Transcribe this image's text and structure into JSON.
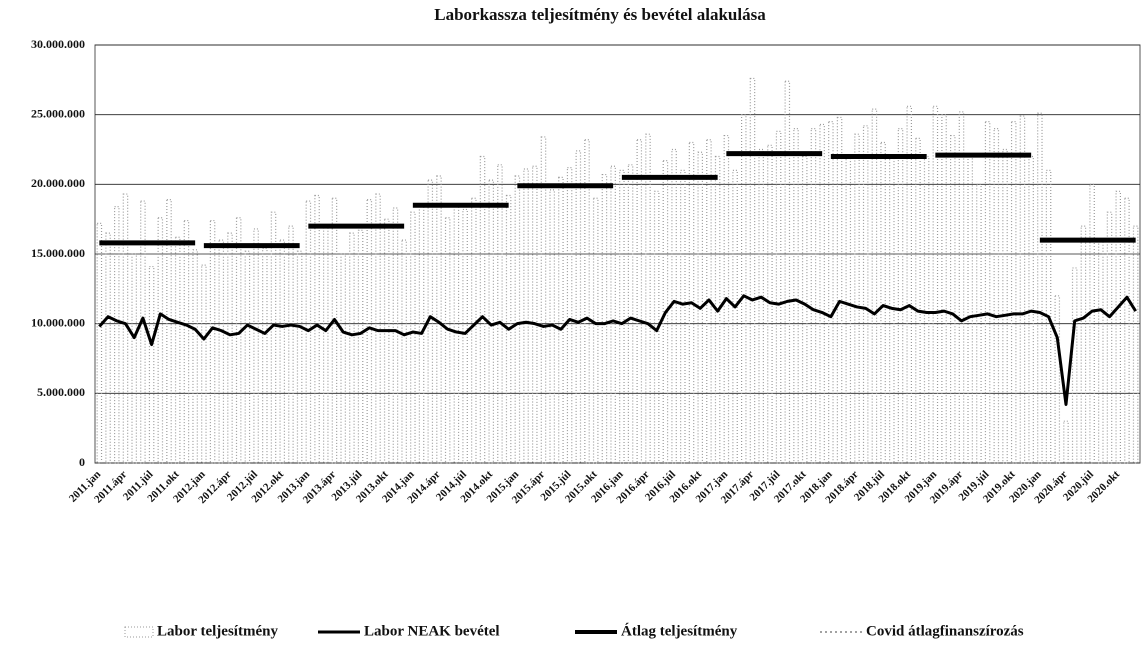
{
  "chart_data": {
    "type": "bar",
    "title": "Laborkassza teljesítmény és bevétel alakulása",
    "categories": [
      "2011.jan",
      null,
      null,
      "2011.ápr",
      null,
      null,
      "2011.júl",
      null,
      null,
      "2011.okt",
      null,
      null,
      "2012.jan",
      null,
      null,
      "2012.ápr",
      null,
      null,
      "2012.júl",
      null,
      null,
      "2012.okt",
      null,
      null,
      "2013.jan",
      null,
      null,
      "2013.ápr",
      null,
      null,
      "2013.júl",
      null,
      null,
      "2013.okt",
      null,
      null,
      "2014.jan",
      null,
      null,
      "2014.ápr",
      null,
      null,
      "2014.júl",
      null,
      null,
      "2014.okt",
      null,
      null,
      "2015.jan",
      null,
      null,
      "2015.ápr",
      null,
      null,
      "2015.júl",
      null,
      null,
      "2015.okt",
      null,
      null,
      "2016.jan",
      null,
      null,
      "2016.ápr",
      null,
      null,
      "2016.júl",
      null,
      null,
      "2016.okt",
      null,
      null,
      "2017.jan",
      null,
      null,
      "2017.ápr",
      null,
      null,
      "2017.júl",
      null,
      null,
      "2017.okt",
      null,
      null,
      "2018.jan",
      null,
      null,
      "2018.ápr",
      null,
      null,
      "2018.júl",
      null,
      null,
      "2018.okt",
      null,
      null,
      "2019.jan",
      null,
      null,
      "2019.ápr",
      null,
      null,
      "2019.júl",
      null,
      null,
      "2019.okt",
      null,
      null,
      "2020.jan",
      null,
      null,
      "2020.ápr",
      null,
      null,
      "2020.júl",
      null,
      null,
      "2020.okt",
      null,
      null
    ],
    "series": [
      {
        "name": "Labor teljesítmény",
        "type": "bar",
        "color": "#9a9a9a",
        "values": [
          17200000,
          16500000,
          18400000,
          19300000,
          15000000,
          18800000,
          14100000,
          17600000,
          18900000,
          16200000,
          17400000,
          15300000,
          14200000,
          17400000,
          16000000,
          16500000,
          17600000,
          15200000,
          16800000,
          15400000,
          18000000,
          16000000,
          17000000,
          15200000,
          18800000,
          19200000,
          17000000,
          19000000,
          15000000,
          16500000,
          16700000,
          18900000,
          19300000,
          17500000,
          18300000,
          16000000,
          18000000,
          18500000,
          20300000,
          20600000,
          17600000,
          18500000,
          18200000,
          19000000,
          22000000,
          20300000,
          21400000,
          19200000,
          20600000,
          21100000,
          21300000,
          23400000,
          19600000,
          20500000,
          21200000,
          22400000,
          23200000,
          19000000,
          20700000,
          21300000,
          21000000,
          21400000,
          23200000,
          23600000,
          19500000,
          21700000,
          22500000,
          21000000,
          23000000,
          22300000,
          23200000,
          22000000,
          23500000,
          21000000,
          25000000,
          27600000,
          22500000,
          22800000,
          23800000,
          27400000,
          24000000,
          22000000,
          24000000,
          24300000,
          24500000,
          24800000,
          22000000,
          23600000,
          24200000,
          25400000,
          23000000,
          22000000,
          24000000,
          25600000,
          23300000,
          22000000,
          25600000,
          25000000,
          23500000,
          25200000,
          22200000,
          20000000,
          24500000,
          24000000,
          22500000,
          24500000,
          24900000,
          22000000,
          25100000,
          21000000,
          12000000,
          3000000,
          14000000,
          17000000,
          20000000,
          16000000,
          18000000,
          19500000,
          19000000,
          17000000
        ]
      },
      {
        "name": "Labor NEAK bevétel",
        "type": "line",
        "color": "#000000",
        "width": 3,
        "values": [
          9800000,
          10500000,
          10200000,
          10000000,
          9000000,
          10400000,
          8500000,
          10700000,
          10300000,
          10100000,
          9900000,
          9600000,
          8900000,
          9700000,
          9500000,
          9200000,
          9300000,
          9900000,
          9600000,
          9300000,
          9900000,
          9800000,
          9900000,
          9800000,
          9500000,
          9900000,
          9500000,
          10300000,
          9400000,
          9200000,
          9300000,
          9700000,
          9500000,
          9500000,
          9500000,
          9200000,
          9400000,
          9300000,
          10500000,
          10100000,
          9600000,
          9400000,
          9300000,
          9900000,
          10500000,
          9900000,
          10100000,
          9600000,
          10000000,
          10100000,
          10000000,
          9800000,
          9900000,
          9600000,
          10300000,
          10100000,
          10400000,
          10000000,
          10000000,
          10200000,
          10000000,
          10400000,
          10200000,
          10000000,
          9500000,
          10800000,
          11600000,
          11400000,
          11500000,
          11100000,
          11700000,
          10900000,
          11800000,
          11200000,
          12000000,
          11700000,
          11900000,
          11500000,
          11400000,
          11600000,
          11700000,
          11400000,
          11000000,
          10800000,
          10500000,
          11600000,
          11400000,
          11200000,
          11100000,
          10700000,
          11300000,
          11100000,
          11000000,
          11300000,
          10900000,
          10800000,
          10800000,
          10900000,
          10700000,
          10200000,
          10500000,
          10600000,
          10700000,
          10500000,
          10600000,
          10700000,
          10700000,
          10900000,
          10800000,
          10500000,
          9000000,
          4200000,
          10200000,
          10400000,
          10900000,
          11000000,
          10500000,
          11200000,
          11900000,
          10900000
        ]
      },
      {
        "name": "Átlag teljesítmény",
        "type": "line",
        "color": "#000000",
        "width": 5,
        "values": [
          15800000,
          15800000,
          15800000,
          15800000,
          15800000,
          15800000,
          15800000,
          15800000,
          15800000,
          15800000,
          15800000,
          15800000,
          15600000,
          15600000,
          15600000,
          15600000,
          15600000,
          15600000,
          15600000,
          15600000,
          15600000,
          15600000,
          15600000,
          15600000,
          17000000,
          17000000,
          17000000,
          17000000,
          17000000,
          17000000,
          17000000,
          17000000,
          17000000,
          17000000,
          17000000,
          17000000,
          18500000,
          18500000,
          18500000,
          18500000,
          18500000,
          18500000,
          18500000,
          18500000,
          18500000,
          18500000,
          18500000,
          18500000,
          19900000,
          19900000,
          19900000,
          19900000,
          19900000,
          19900000,
          19900000,
          19900000,
          19900000,
          19900000,
          19900000,
          19900000,
          20500000,
          20500000,
          20500000,
          20500000,
          20500000,
          20500000,
          20500000,
          20500000,
          20500000,
          20500000,
          20500000,
          20500000,
          22200000,
          22200000,
          22200000,
          22200000,
          22200000,
          22200000,
          22200000,
          22200000,
          22200000,
          22200000,
          22200000,
          22200000,
          22000000,
          22000000,
          22000000,
          22000000,
          22000000,
          22000000,
          22000000,
          22000000,
          22000000,
          22000000,
          22000000,
          22000000,
          22100000,
          22100000,
          22100000,
          22100000,
          22100000,
          22100000,
          22100000,
          22100000,
          22100000,
          22100000,
          22100000,
          22100000,
          16000000,
          16000000,
          16000000,
          16000000,
          16000000,
          16000000,
          16000000,
          16000000,
          16000000,
          16000000,
          16000000,
          16000000
        ]
      },
      {
        "name": "Covid átlagfinanszírozás",
        "type": "line",
        "color": "#444444",
        "width": 1,
        "dash": true,
        "values": [
          null,
          null,
          null,
          null,
          null,
          null,
          null,
          null,
          null,
          null,
          null,
          null,
          null,
          null,
          null,
          null,
          null,
          null,
          null,
          null,
          null,
          null,
          null,
          null,
          null,
          null,
          null,
          null,
          null,
          null,
          null,
          null,
          null,
          null,
          null,
          null,
          null,
          null,
          null,
          null,
          null,
          null,
          null,
          null,
          null,
          null,
          null,
          null,
          null,
          null,
          null,
          null,
          null,
          null,
          null,
          null,
          null,
          null,
          null,
          null,
          null,
          null,
          null,
          null,
          null,
          null,
          null,
          null,
          null,
          null,
          null,
          null,
          null,
          null,
          null,
          null,
          null,
          null,
          null,
          null,
          null,
          null,
          null,
          null,
          null,
          null,
          null,
          null,
          null,
          null,
          null,
          null,
          null,
          null,
          null,
          null,
          null,
          null,
          null,
          null,
          null,
          null,
          null,
          null,
          null,
          null,
          null,
          null,
          null,
          null,
          null,
          null,
          null,
          null,
          null,
          null,
          null,
          null,
          null,
          null
        ]
      }
    ],
    "ylim": [
      0,
      30000000
    ],
    "yticks": [
      0,
      {
        "value": 5000000,
        "label": "5.000.000"
      },
      {
        "value": 10000000,
        "label": "10.000.000"
      },
      {
        "value": 15000000,
        "label": "15.000.000"
      },
      {
        "value": 20000000,
        "label": "20.000.000"
      },
      {
        "value": 25000000,
        "label": "25.000.000"
      },
      {
        "value": 30000000,
        "label": "30.000.000"
      }
    ],
    "grid": true,
    "legend": "bottom"
  }
}
